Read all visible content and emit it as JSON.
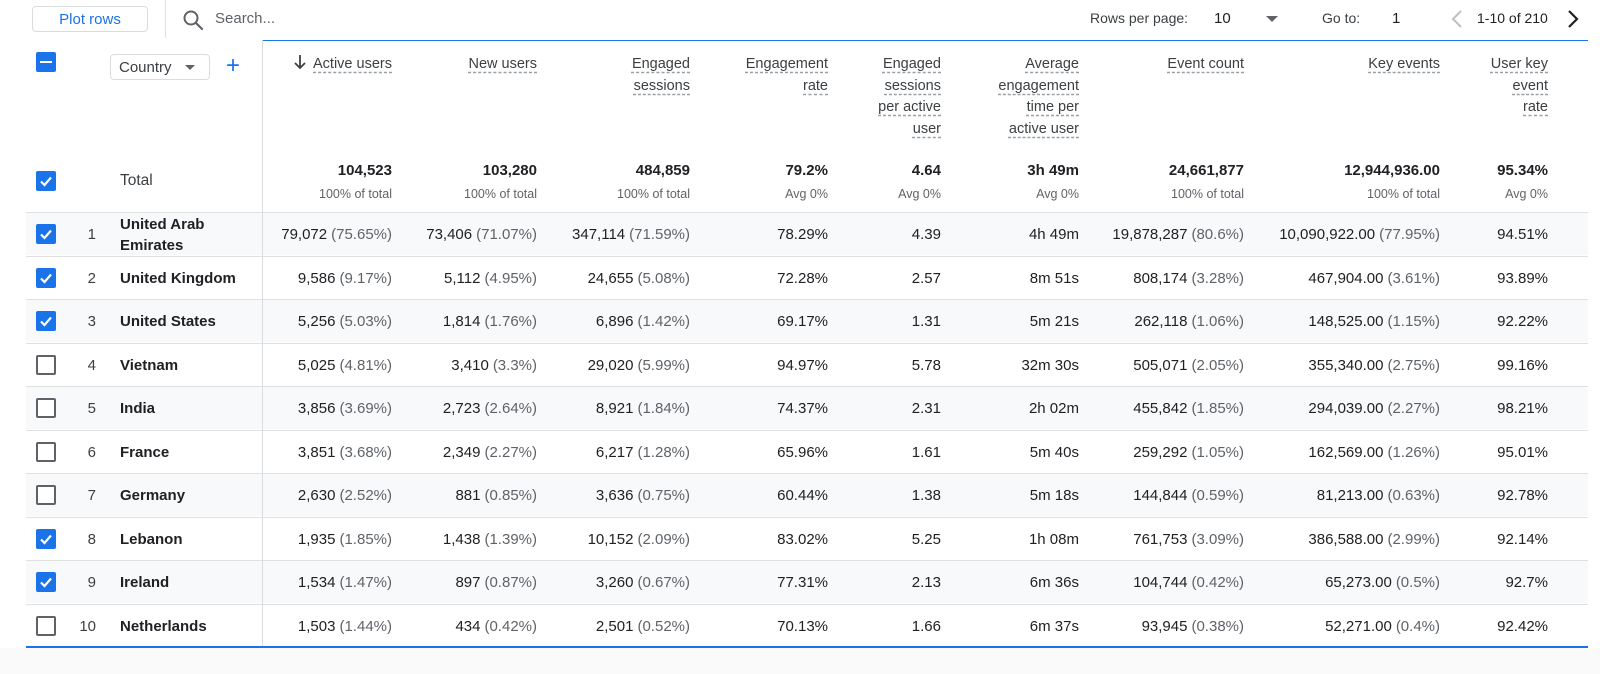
{
  "toolbar": {
    "plot_rows": "Plot rows",
    "search_placeholder": "Search...",
    "rows_per_page_label": "Rows per page:",
    "rows_per_page_value": "10",
    "goto_label": "Go to:",
    "goto_value": "1",
    "range_text": "1-10 of 210"
  },
  "dimension": {
    "selector_label": "Country",
    "total_label": "Total"
  },
  "columns": [
    {
      "key": "active_users",
      "label": [
        "Active users"
      ],
      "sorted": true
    },
    {
      "key": "new_users",
      "label": [
        "New users"
      ]
    },
    {
      "key": "engaged_sessions",
      "label": [
        "Engaged",
        "sessions"
      ]
    },
    {
      "key": "engagement_rate",
      "label": [
        "Engagement",
        "rate"
      ]
    },
    {
      "key": "engaged_per_user",
      "label": [
        "Engaged",
        "sessions",
        "per active",
        "user"
      ]
    },
    {
      "key": "avg_engagement_time",
      "label": [
        "Average",
        "engagement",
        "time per",
        "active user"
      ]
    },
    {
      "key": "event_count",
      "label": [
        "Event count"
      ]
    },
    {
      "key": "key_events",
      "label": [
        "Key events"
      ]
    },
    {
      "key": "user_key_event_rate",
      "label": [
        "User key",
        "event",
        "rate"
      ]
    }
  ],
  "totals": [
    {
      "value": "104,523",
      "sub": "100% of total"
    },
    {
      "value": "103,280",
      "sub": "100% of total"
    },
    {
      "value": "484,859",
      "sub": "100% of total"
    },
    {
      "value": "79.2%",
      "sub": "Avg 0%"
    },
    {
      "value": "4.64",
      "sub": "Avg 0%"
    },
    {
      "value": "3h 49m",
      "sub": "Avg 0%"
    },
    {
      "value": "24,661,877",
      "sub": "100% of total"
    },
    {
      "value": "12,944,936.00",
      "sub": "100% of total"
    },
    {
      "value": "95.34%",
      "sub": "Avg 0%"
    }
  ],
  "rows": [
    {
      "rank": "1",
      "country": "United Arab Emirates",
      "checked": true,
      "cells": [
        [
          "79,072",
          "(75.65%)"
        ],
        [
          "73,406",
          "(71.07%)"
        ],
        [
          "347,114",
          "(71.59%)"
        ],
        [
          "78.29%",
          ""
        ],
        [
          "4.39",
          ""
        ],
        [
          "4h 49m",
          ""
        ],
        [
          "19,878,287",
          "(80.6%)"
        ],
        [
          "10,090,922.00",
          "(77.95%)"
        ],
        [
          "94.51%",
          ""
        ]
      ]
    },
    {
      "rank": "2",
      "country": "United Kingdom",
      "checked": true,
      "cells": [
        [
          "9,586",
          "(9.17%)"
        ],
        [
          "5,112",
          "(4.95%)"
        ],
        [
          "24,655",
          "(5.08%)"
        ],
        [
          "72.28%",
          ""
        ],
        [
          "2.57",
          ""
        ],
        [
          "8m 51s",
          ""
        ],
        [
          "808,174",
          "(3.28%)"
        ],
        [
          "467,904.00",
          "(3.61%)"
        ],
        [
          "93.89%",
          ""
        ]
      ]
    },
    {
      "rank": "3",
      "country": "United States",
      "checked": true,
      "cells": [
        [
          "5,256",
          "(5.03%)"
        ],
        [
          "1,814",
          "(1.76%)"
        ],
        [
          "6,896",
          "(1.42%)"
        ],
        [
          "69.17%",
          ""
        ],
        [
          "1.31",
          ""
        ],
        [
          "5m 21s",
          ""
        ],
        [
          "262,118",
          "(1.06%)"
        ],
        [
          "148,525.00",
          "(1.15%)"
        ],
        [
          "92.22%",
          ""
        ]
      ]
    },
    {
      "rank": "4",
      "country": "Vietnam",
      "checked": false,
      "cells": [
        [
          "5,025",
          "(4.81%)"
        ],
        [
          "3,410",
          "(3.3%)"
        ],
        [
          "29,020",
          "(5.99%)"
        ],
        [
          "94.97%",
          ""
        ],
        [
          "5.78",
          ""
        ],
        [
          "32m 30s",
          ""
        ],
        [
          "505,071",
          "(2.05%)"
        ],
        [
          "355,340.00",
          "(2.75%)"
        ],
        [
          "99.16%",
          ""
        ]
      ]
    },
    {
      "rank": "5",
      "country": "India",
      "checked": false,
      "cells": [
        [
          "3,856",
          "(3.69%)"
        ],
        [
          "2,723",
          "(2.64%)"
        ],
        [
          "8,921",
          "(1.84%)"
        ],
        [
          "74.37%",
          ""
        ],
        [
          "2.31",
          ""
        ],
        [
          "2h 02m",
          ""
        ],
        [
          "455,842",
          "(1.85%)"
        ],
        [
          "294,039.00",
          "(2.27%)"
        ],
        [
          "98.21%",
          ""
        ]
      ]
    },
    {
      "rank": "6",
      "country": "France",
      "checked": false,
      "cells": [
        [
          "3,851",
          "(3.68%)"
        ],
        [
          "2,349",
          "(2.27%)"
        ],
        [
          "6,217",
          "(1.28%)"
        ],
        [
          "65.96%",
          ""
        ],
        [
          "1.61",
          ""
        ],
        [
          "5m 40s",
          ""
        ],
        [
          "259,292",
          "(1.05%)"
        ],
        [
          "162,569.00",
          "(1.26%)"
        ],
        [
          "95.01%",
          ""
        ]
      ]
    },
    {
      "rank": "7",
      "country": "Germany",
      "checked": false,
      "cells": [
        [
          "2,630",
          "(2.52%)"
        ],
        [
          "881",
          "(0.85%)"
        ],
        [
          "3,636",
          "(0.75%)"
        ],
        [
          "60.44%",
          ""
        ],
        [
          "1.38",
          ""
        ],
        [
          "5m 18s",
          ""
        ],
        [
          "144,844",
          "(0.59%)"
        ],
        [
          "81,213.00",
          "(0.63%)"
        ],
        [
          "92.78%",
          ""
        ]
      ]
    },
    {
      "rank": "8",
      "country": "Lebanon",
      "checked": true,
      "cells": [
        [
          "1,935",
          "(1.85%)"
        ],
        [
          "1,438",
          "(1.39%)"
        ],
        [
          "10,152",
          "(2.09%)"
        ],
        [
          "83.02%",
          ""
        ],
        [
          "5.25",
          ""
        ],
        [
          "1h 08m",
          ""
        ],
        [
          "761,753",
          "(3.09%)"
        ],
        [
          "386,588.00",
          "(2.99%)"
        ],
        [
          "92.14%",
          ""
        ]
      ]
    },
    {
      "rank": "9",
      "country": "Ireland",
      "checked": true,
      "cells": [
        [
          "1,534",
          "(1.47%)"
        ],
        [
          "897",
          "(0.87%)"
        ],
        [
          "3,260",
          "(0.67%)"
        ],
        [
          "77.31%",
          ""
        ],
        [
          "2.13",
          ""
        ],
        [
          "6m 36s",
          ""
        ],
        [
          "104,744",
          "(0.42%)"
        ],
        [
          "65,273.00",
          "(0.5%)"
        ],
        [
          "92.7%",
          ""
        ]
      ]
    },
    {
      "rank": "10",
      "country": "Netherlands",
      "checked": false,
      "cells": [
        [
          "1,503",
          "(1.44%)"
        ],
        [
          "434",
          "(0.42%)"
        ],
        [
          "2,501",
          "(0.52%)"
        ],
        [
          "70.13%",
          ""
        ],
        [
          "1.66",
          ""
        ],
        [
          "6m 37s",
          ""
        ],
        [
          "93,945",
          "(0.38%)"
        ],
        [
          "52,271.00",
          "(0.4%)"
        ],
        [
          "92.42%",
          ""
        ]
      ]
    }
  ],
  "colors": {
    "accent": "#1a73e8",
    "text": "#202124",
    "muted": "#5f6368",
    "row_alt": "#f8f9fa",
    "divider": "#e0e0e0"
  }
}
